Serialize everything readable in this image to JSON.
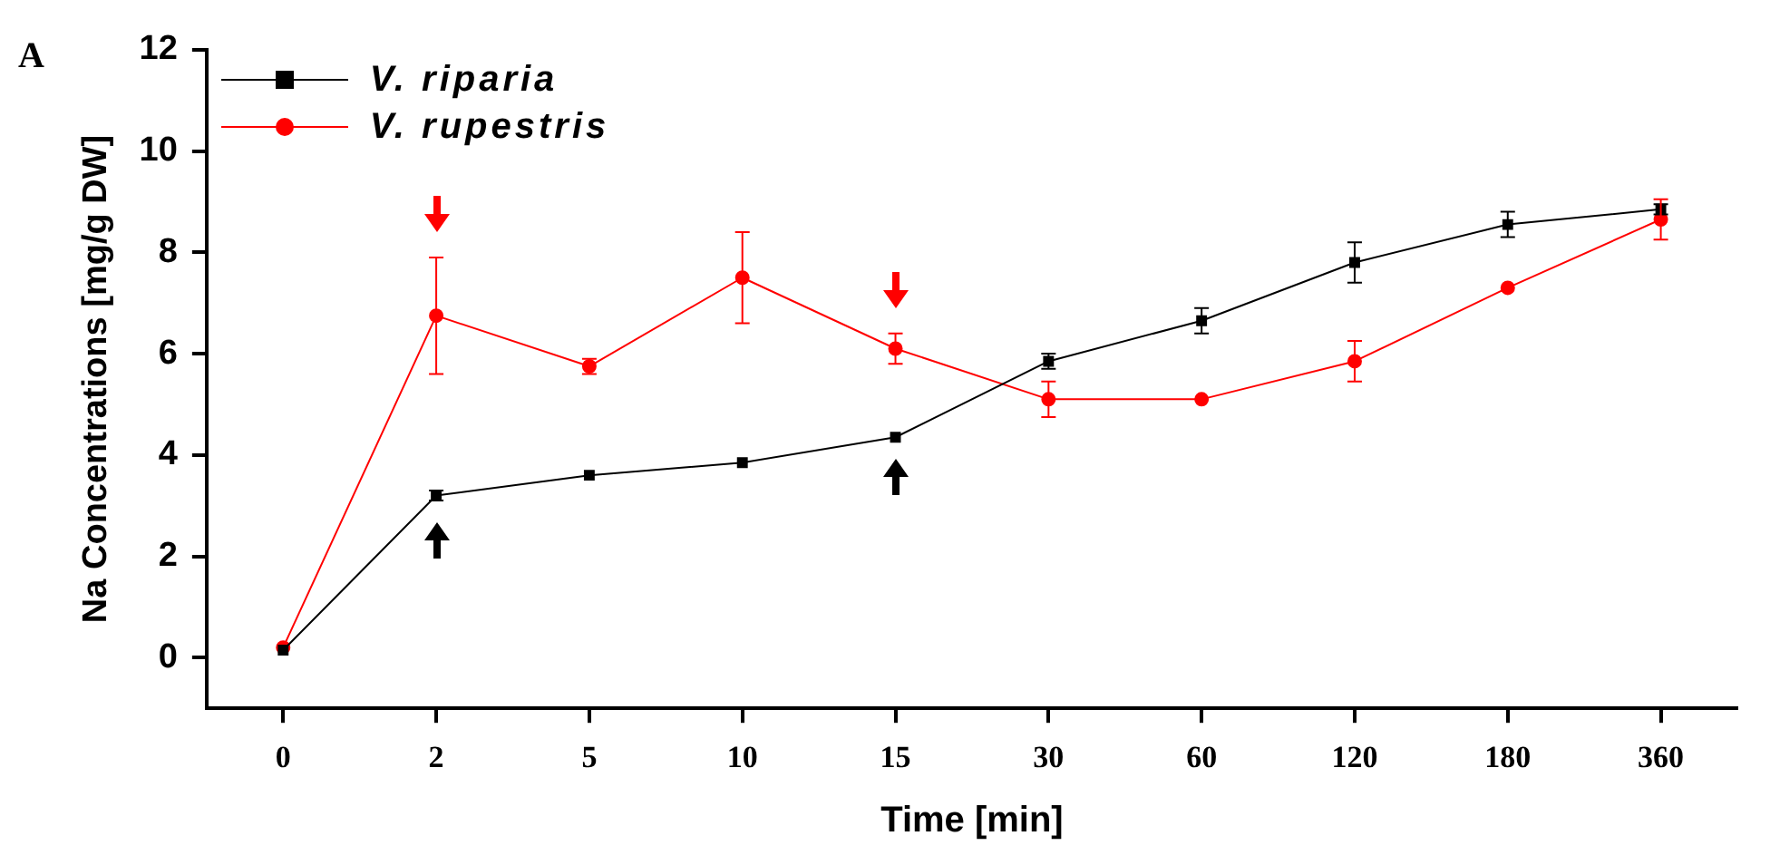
{
  "chart_data": {
    "type": "line",
    "annotations": [
      "A"
    ],
    "xlabel": "Time [min]",
    "ylabel": "Na Concentrations [mg/g DW]",
    "categories": [
      "0",
      "2",
      "5",
      "10",
      "15",
      "30",
      "60",
      "120",
      "180",
      "360"
    ],
    "series": [
      {
        "name": "V. riparia",
        "color": "#000000",
        "marker": "square",
        "values": [
          0.15,
          3.2,
          3.6,
          3.85,
          4.35,
          5.85,
          6.65,
          7.8,
          8.55,
          8.85
        ],
        "errors": [
          null,
          0.1,
          null,
          null,
          null,
          0.15,
          0.25,
          0.4,
          0.25,
          0.1
        ]
      },
      {
        "name": "V. rupestris",
        "color": "#ff0000",
        "marker": "circle",
        "values": [
          0.2,
          6.75,
          5.75,
          7.5,
          6.1,
          5.1,
          5.1,
          5.85,
          7.3,
          8.65
        ],
        "errors": [
          null,
          [
            5.6,
            7.9
          ],
          0.15,
          [
            6.6,
            8.4
          ],
          0.3,
          0.35,
          null,
          0.4,
          null,
          0.4
        ]
      }
    ],
    "ylim": [
      -1,
      12
    ],
    "yticks": [
      0,
      2,
      4,
      6,
      8,
      10,
      12
    ],
    "grid": false,
    "legend": "top left",
    "line_style": "solid"
  }
}
